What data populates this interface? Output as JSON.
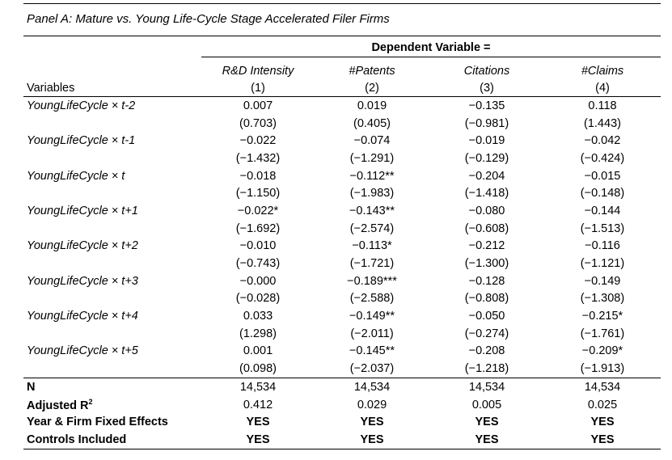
{
  "caption": "Panel A: Mature vs. Young Life-Cycle Stage Accelerated Filer Firms",
  "header": {
    "dependent_label": "Dependent Variable =",
    "variables_label": "Variables",
    "columns": [
      {
        "name": "R&D Intensity",
        "number": "(1)"
      },
      {
        "name": "#Patents",
        "number": "(2)"
      },
      {
        "name": "Citations",
        "number": "(3)"
      },
      {
        "name": "#Claims",
        "number": "(4)"
      }
    ]
  },
  "rows": [
    {
      "label": "YoungLifeCycle × t-2",
      "coef": [
        "0.007",
        "0.019",
        "−0.135",
        "0.118"
      ],
      "tstat": [
        "(0.703)",
        "(0.405)",
        "(−0.981)",
        "(1.443)"
      ]
    },
    {
      "label": "YoungLifeCycle × t-1",
      "coef": [
        "−0.022",
        "−0.074",
        "−0.019",
        "−0.042"
      ],
      "tstat": [
        "(−1.432)",
        "(−1.291)",
        "(−0.129)",
        "(−0.424)"
      ]
    },
    {
      "label": "YoungLifeCycle × t",
      "coef": [
        "−0.018",
        "−0.112**",
        "−0.204",
        "−0.015"
      ],
      "tstat": [
        "(−1.150)",
        "(−1.983)",
        "(−1.418)",
        "(−0.148)"
      ]
    },
    {
      "label": "YoungLifeCycle × t+1",
      "coef": [
        "−0.022*",
        "−0.143**",
        "−0.080",
        "−0.144"
      ],
      "tstat": [
        "(−1.692)",
        "(−2.574)",
        "(−0.608)",
        "(−1.513)"
      ]
    },
    {
      "label": "YoungLifeCycle × t+2",
      "coef": [
        "−0.010",
        "−0.113*",
        "−0.212",
        "−0.116"
      ],
      "tstat": [
        "(−0.743)",
        "(−1.721)",
        "(−1.300)",
        "(−1.121)"
      ]
    },
    {
      "label": "YoungLifeCycle × t+3",
      "coef": [
        "−0.000",
        "−0.189***",
        "−0.128",
        "−0.149"
      ],
      "tstat": [
        "(−0.028)",
        "(−2.588)",
        "(−0.808)",
        "(−1.308)"
      ]
    },
    {
      "label": "YoungLifeCycle × t+4",
      "coef": [
        "0.033",
        "−0.149**",
        "−0.050",
        "−0.215*"
      ],
      "tstat": [
        "(1.298)",
        "(−2.011)",
        "(−0.274)",
        "(−1.761)"
      ]
    },
    {
      "label": "YoungLifeCycle × t+5",
      "coef": [
        "0.001",
        "−0.145**",
        "−0.208",
        "−0.209*"
      ],
      "tstat": [
        "(0.098)",
        "(−2.037)",
        "(−1.218)",
        "(−1.913)"
      ]
    }
  ],
  "stats": {
    "n": {
      "label": "N",
      "values": [
        "14,534",
        "14,534",
        "14,534",
        "14,534"
      ]
    },
    "r2": {
      "label": "Adjusted R",
      "sup": "2",
      "values": [
        "0.412",
        "0.029",
        "0.005",
        "0.025"
      ]
    },
    "fe": {
      "label": "Year & Firm Fixed Effects",
      "values": [
        "YES",
        "YES",
        "YES",
        "YES"
      ]
    },
    "controls": {
      "label": "Controls Included",
      "values": [
        "YES",
        "YES",
        "YES",
        "YES"
      ]
    }
  }
}
